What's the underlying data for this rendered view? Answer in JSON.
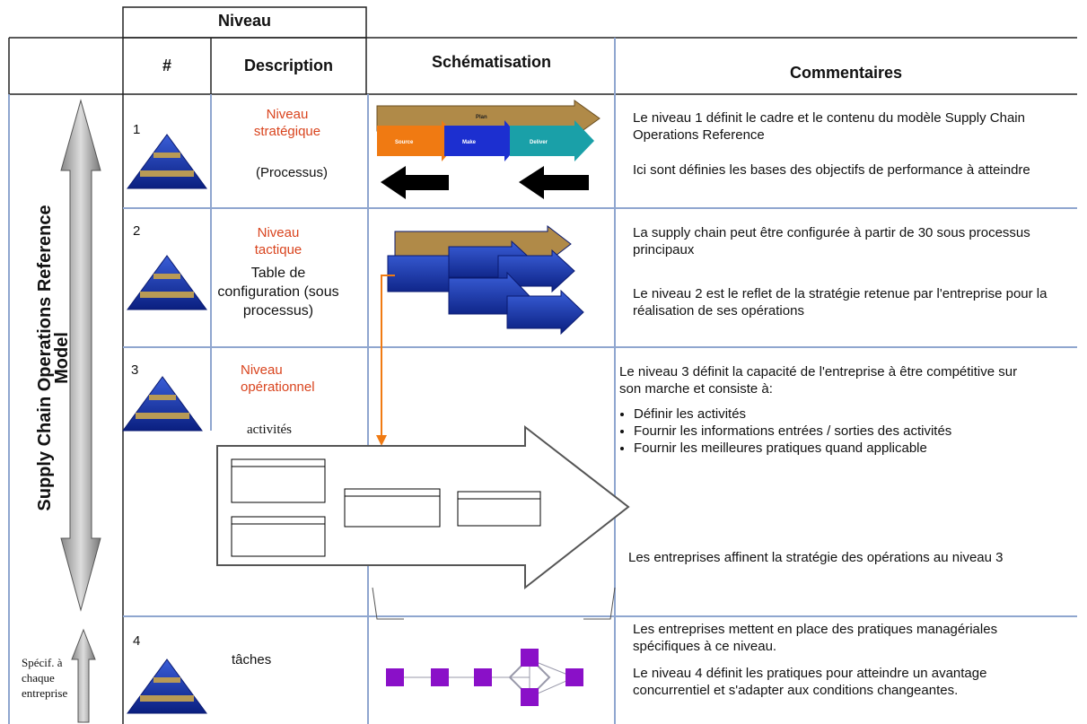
{
  "header": {
    "group": "Niveau",
    "columns": [
      "#",
      "Description",
      "Schématisation",
      "Commentaires"
    ]
  },
  "side": {
    "model": "Supply Chain Operations Reference Model",
    "specific": "Spécif. à chaque entreprise"
  },
  "schema": {
    "plan": "Plan",
    "source": "Source",
    "make": "Make",
    "deliver": "Deliver"
  },
  "rows": [
    {
      "number": "1",
      "title": "Niveau stratégique",
      "subtitle": "(Processus)",
      "comments": [
        "Le niveau 1 définit le cadre et le contenu du modèle Supply Chain Operations Reference",
        "Ici sont définies les bases des objectifs de performance à atteindre"
      ]
    },
    {
      "number": "2",
      "title": "Niveau tactique",
      "subtitle": "Table de configuration (sous processus)",
      "comments": [
        "La supply chain peut être configurée à partir de 30 sous processus principaux",
        "Le niveau 2 est le reflet de la stratégie retenue par l'entreprise pour la réalisation de ses opérations"
      ]
    },
    {
      "number": "3",
      "title": "Niveau opérationnel",
      "subtitle": "activités",
      "comments": [
        "Le niveau 3 définit la capacité de l'entreprise à être compétitive sur son marche et consiste à:"
      ],
      "bullets": [
        "Définir les activités",
        "Fournir les informations entrées / sorties des activités",
        "Fournir les meilleures pratiques quand applicable"
      ],
      "closing": "Les entreprises affinent la stratégie des opérations au niveau 3"
    },
    {
      "number": "4",
      "subtitle": "tâches",
      "comments": [
        "Les entreprises mettent en place des pratiques managériales spécifiques à ce niveau.",
        "Le niveau 4 définit les pratiques pour atteindre un avantage concurrentiel et s'adapter aux conditions changeantes."
      ]
    }
  ]
}
